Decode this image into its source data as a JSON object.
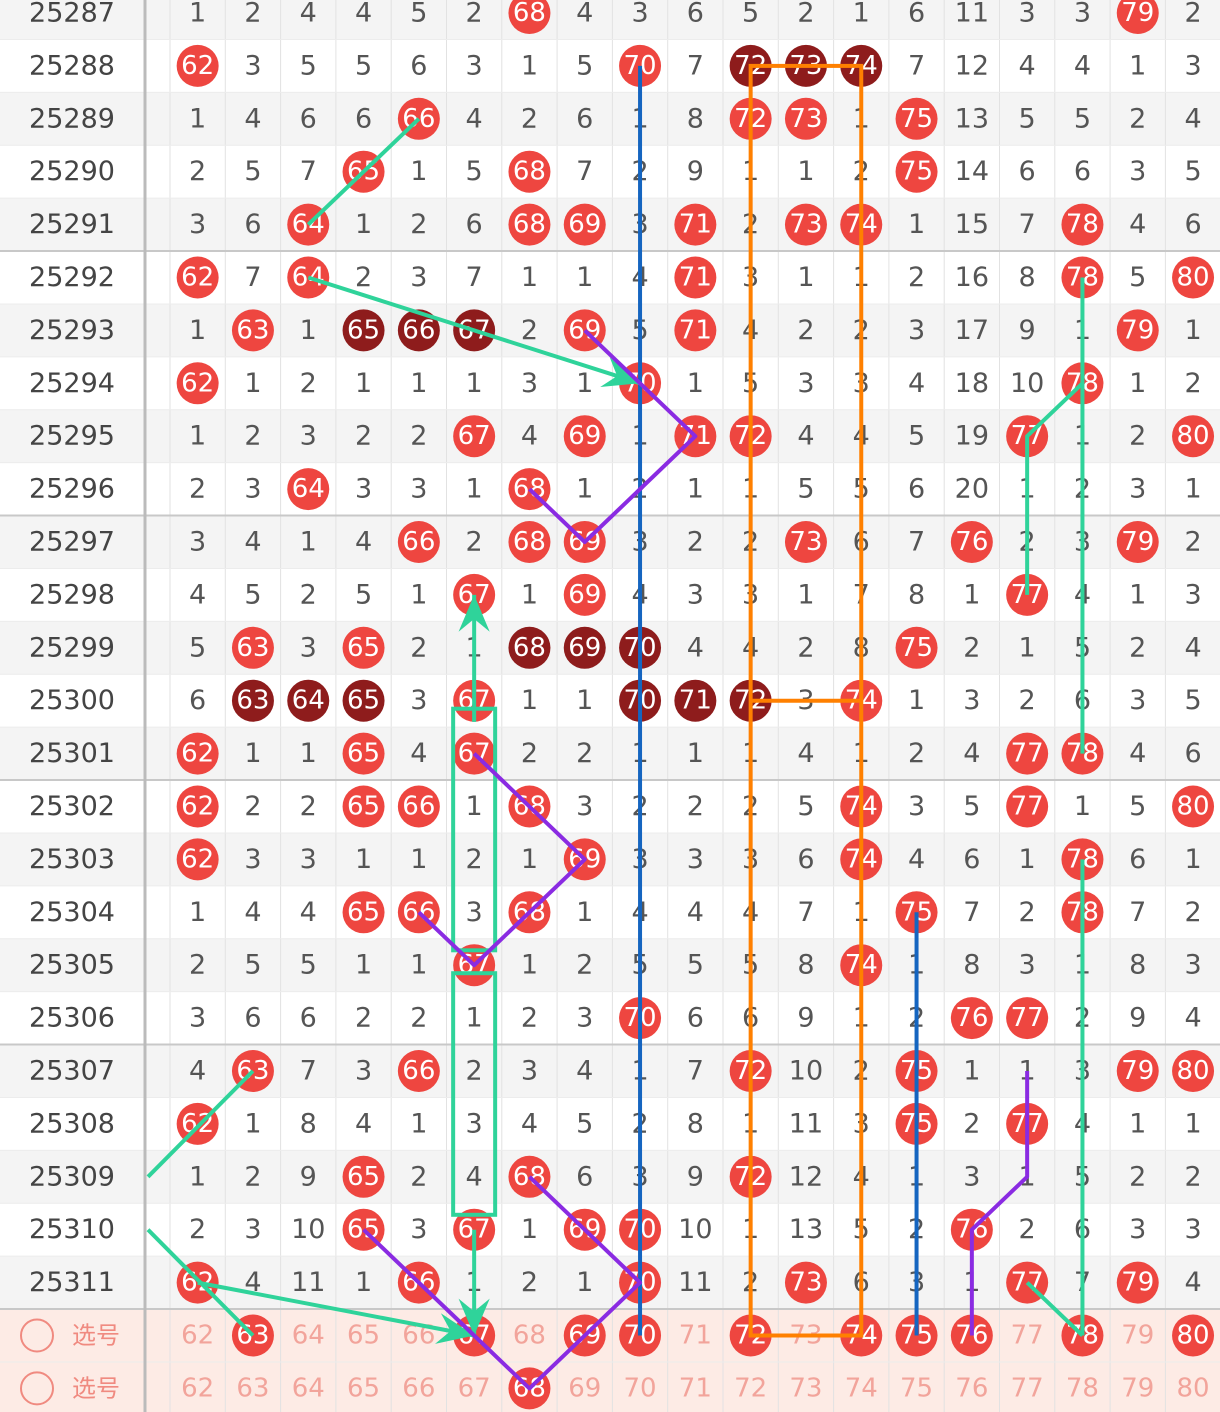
{
  "table": {
    "rows": [
      {
        "period": "25287",
        "cells": [
          1,
          2,
          4,
          4,
          5,
          2,
          68,
          4,
          3,
          6,
          5,
          2,
          1,
          6,
          11,
          3,
          3,
          79,
          2
        ]
      },
      {
        "period": "25288",
        "cells": [
          62,
          3,
          5,
          5,
          6,
          3,
          1,
          5,
          70,
          7,
          72,
          73,
          74,
          7,
          12,
          4,
          4,
          1,
          3
        ]
      },
      {
        "period": "25289",
        "cells": [
          1,
          4,
          6,
          6,
          66,
          4,
          2,
          6,
          1,
          8,
          72,
          73,
          1,
          75,
          13,
          5,
          5,
          2,
          4
        ]
      },
      {
        "period": "25290",
        "cells": [
          2,
          5,
          7,
          65,
          1,
          5,
          68,
          7,
          2,
          9,
          1,
          1,
          2,
          75,
          14,
          6,
          6,
          3,
          5
        ]
      },
      {
        "period": "25291",
        "cells": [
          3,
          6,
          64,
          1,
          2,
          6,
          68,
          69,
          3,
          71,
          2,
          73,
          74,
          1,
          15,
          7,
          78,
          4,
          6
        ]
      },
      {
        "period": "25292",
        "cells": [
          62,
          7,
          64,
          2,
          3,
          7,
          1,
          1,
          4,
          71,
          3,
          1,
          1,
          2,
          16,
          8,
          78,
          5,
          80
        ]
      },
      {
        "period": "25293",
        "cells": [
          1,
          63,
          1,
          65,
          66,
          67,
          2,
          69,
          5,
          71,
          4,
          2,
          2,
          3,
          17,
          9,
          1,
          79,
          1
        ]
      },
      {
        "period": "25294",
        "cells": [
          62,
          1,
          2,
          1,
          1,
          1,
          3,
          1,
          70,
          1,
          5,
          3,
          3,
          4,
          18,
          10,
          78,
          1,
          2
        ]
      },
      {
        "period": "25295",
        "cells": [
          1,
          2,
          3,
          2,
          2,
          67,
          4,
          69,
          1,
          71,
          72,
          4,
          4,
          5,
          19,
          77,
          1,
          2,
          80
        ]
      },
      {
        "period": "25296",
        "cells": [
          2,
          3,
          64,
          3,
          3,
          1,
          68,
          1,
          2,
          1,
          1,
          5,
          5,
          6,
          20,
          1,
          2,
          3,
          1
        ]
      },
      {
        "period": "25297",
        "cells": [
          3,
          4,
          1,
          4,
          66,
          2,
          68,
          69,
          3,
          2,
          2,
          73,
          6,
          7,
          76,
          2,
          3,
          79,
          2
        ]
      },
      {
        "period": "25298",
        "cells": [
          4,
          5,
          2,
          5,
          1,
          67,
          1,
          69,
          4,
          3,
          3,
          1,
          7,
          8,
          1,
          77,
          4,
          1,
          3
        ]
      },
      {
        "period": "25299",
        "cells": [
          5,
          63,
          3,
          65,
          2,
          1,
          68,
          69,
          70,
          4,
          4,
          2,
          8,
          75,
          2,
          1,
          5,
          2,
          4
        ]
      },
      {
        "period": "25300",
        "cells": [
          6,
          63,
          64,
          65,
          3,
          67,
          1,
          1,
          70,
          71,
          72,
          3,
          74,
          1,
          3,
          2,
          6,
          3,
          5
        ]
      },
      {
        "period": "25301",
        "cells": [
          62,
          1,
          1,
          65,
          4,
          67,
          2,
          2,
          1,
          1,
          1,
          4,
          1,
          2,
          4,
          77,
          78,
          4,
          6
        ]
      },
      {
        "period": "25302",
        "cells": [
          62,
          2,
          2,
          65,
          66,
          1,
          68,
          3,
          2,
          2,
          2,
          5,
          74,
          3,
          5,
          77,
          1,
          5,
          80
        ]
      },
      {
        "period": "25303",
        "cells": [
          62,
          3,
          3,
          1,
          1,
          2,
          1,
          69,
          3,
          3,
          3,
          6,
          74,
          4,
          6,
          1,
          78,
          6,
          1
        ]
      },
      {
        "period": "25304",
        "cells": [
          1,
          4,
          4,
          65,
          66,
          3,
          68,
          1,
          4,
          4,
          4,
          7,
          1,
          75,
          7,
          2,
          78,
          7,
          2
        ]
      },
      {
        "period": "25305",
        "cells": [
          2,
          5,
          5,
          1,
          1,
          67,
          1,
          2,
          5,
          5,
          5,
          8,
          74,
          1,
          8,
          3,
          1,
          8,
          3
        ]
      },
      {
        "period": "25306",
        "cells": [
          3,
          6,
          6,
          2,
          2,
          1,
          2,
          3,
          70,
          6,
          6,
          9,
          1,
          2,
          76,
          77,
          2,
          9,
          4
        ]
      },
      {
        "period": "25307",
        "cells": [
          4,
          63,
          7,
          3,
          66,
          2,
          3,
          4,
          1,
          7,
          72,
          10,
          2,
          75,
          1,
          1,
          3,
          79,
          80
        ]
      },
      {
        "period": "25308",
        "cells": [
          62,
          1,
          8,
          4,
          1,
          3,
          4,
          5,
          2,
          8,
          1,
          11,
          3,
          75,
          2,
          77,
          4,
          1,
          1
        ]
      },
      {
        "period": "25309",
        "cells": [
          1,
          2,
          9,
          65,
          2,
          4,
          68,
          6,
          3,
          9,
          72,
          12,
          4,
          1,
          3,
          1,
          5,
          2,
          2
        ]
      },
      {
        "period": "25310",
        "cells": [
          2,
          3,
          10,
          65,
          3,
          67,
          1,
          69,
          70,
          10,
          1,
          13,
          5,
          2,
          76,
          2,
          6,
          3,
          3
        ]
      },
      {
        "period": "25311",
        "cells": [
          62,
          4,
          11,
          1,
          66,
          1,
          2,
          1,
          70,
          11,
          2,
          73,
          6,
          3,
          1,
          77,
          7,
          79,
          4
        ]
      }
    ]
  },
  "footer": [
    {
      "label": "选号",
      "numbers": [
        62,
        63,
        64,
        65,
        66,
        67,
        68,
        69,
        70,
        71,
        72,
        73,
        74,
        75,
        76,
        77,
        78,
        79,
        80
      ]
    },
    {
      "label": "选号",
      "numbers": [
        62,
        63,
        64,
        65,
        66,
        67,
        68,
        69,
        70,
        71,
        72,
        73,
        74,
        75,
        76,
        77,
        78,
        79,
        80
      ]
    }
  ]
}
